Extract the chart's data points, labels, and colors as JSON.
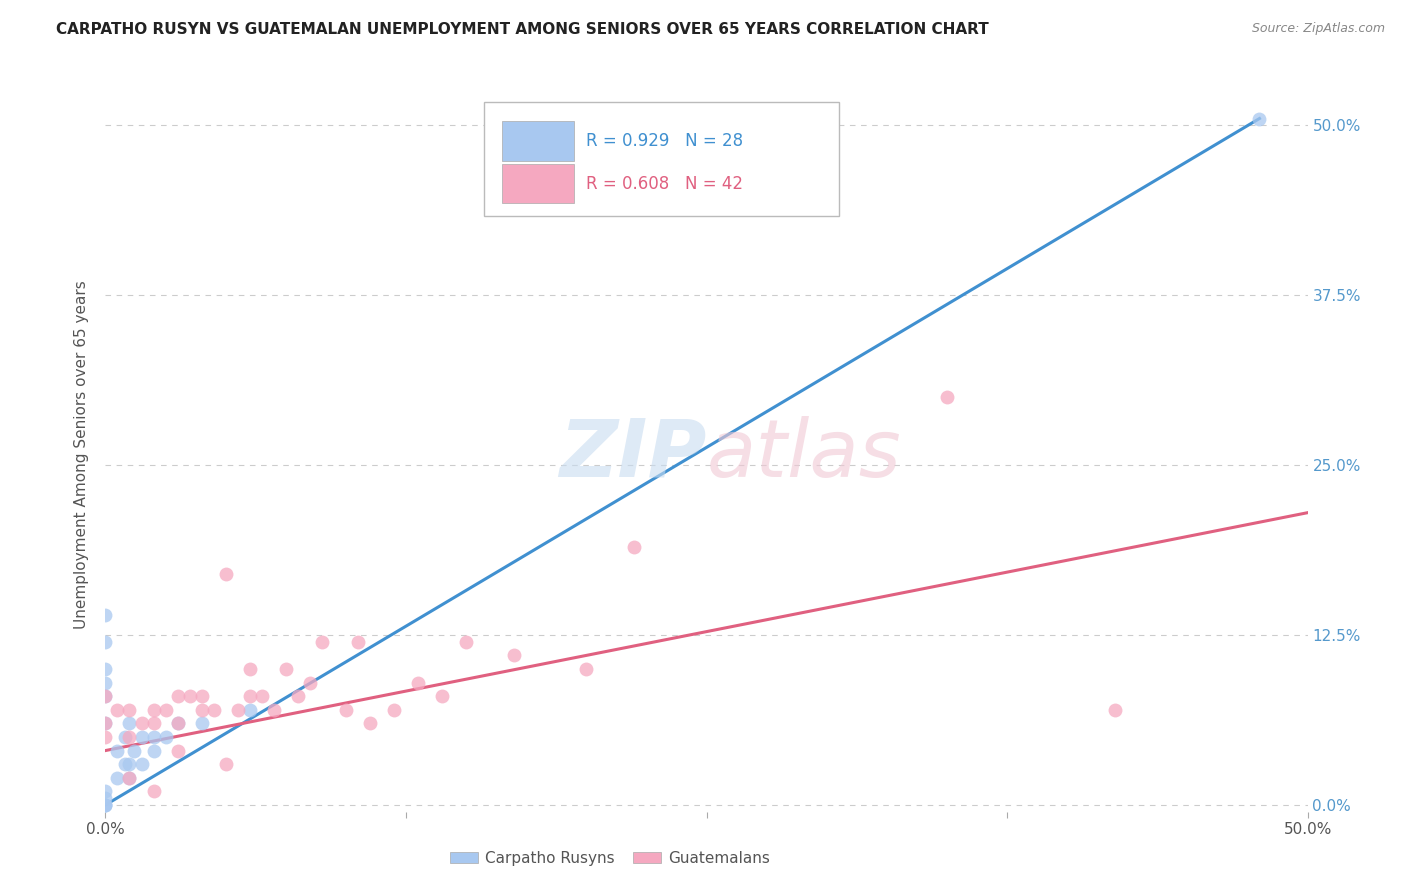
{
  "title": "CARPATHO RUSYN VS GUATEMALAN UNEMPLOYMENT AMONG SENIORS OVER 65 YEARS CORRELATION CHART",
  "source": "Source: ZipAtlas.com",
  "ylabel": "Unemployment Among Seniors over 65 years",
  "xlim": [
    0.0,
    0.5
  ],
  "ylim": [
    -0.005,
    0.52
  ],
  "xticks": [
    0.0,
    0.125,
    0.25,
    0.375,
    0.5
  ],
  "yticks": [
    0.0,
    0.125,
    0.25,
    0.375,
    0.5
  ],
  "ytick_labels_right": [
    "0.0%",
    "12.5%",
    "25.0%",
    "37.5%",
    "50.0%"
  ],
  "xtick_labels_bottom": [
    "0.0%",
    "",
    "",
    "",
    "50.0%"
  ],
  "background_color": "#ffffff",
  "carpatho_color": "#A8C8F0",
  "guatemalan_color": "#F5A8C0",
  "line_color_blue": "#4090D0",
  "line_color_pink": "#E06080",
  "R_carpatho": 0.929,
  "N_carpatho": 28,
  "R_guatemalan": 0.608,
  "N_guatemalan": 42,
  "carpatho_scatter_x": [
    0.0,
    0.0,
    0.0,
    0.0,
    0.0,
    0.0,
    0.0,
    0.0,
    0.0,
    0.0,
    0.0,
    0.005,
    0.005,
    0.008,
    0.008,
    0.01,
    0.01,
    0.01,
    0.012,
    0.015,
    0.015,
    0.02,
    0.02,
    0.025,
    0.03,
    0.04,
    0.06,
    0.48
  ],
  "carpatho_scatter_y": [
    0.0,
    0.0,
    0.0,
    0.005,
    0.01,
    0.06,
    0.08,
    0.09,
    0.1,
    0.12,
    0.14,
    0.02,
    0.04,
    0.03,
    0.05,
    0.02,
    0.03,
    0.06,
    0.04,
    0.03,
    0.05,
    0.04,
    0.05,
    0.05,
    0.06,
    0.06,
    0.07,
    0.505
  ],
  "guatemalan_scatter_x": [
    0.0,
    0.0,
    0.0,
    0.005,
    0.01,
    0.01,
    0.01,
    0.015,
    0.02,
    0.02,
    0.02,
    0.025,
    0.03,
    0.03,
    0.03,
    0.035,
    0.04,
    0.04,
    0.045,
    0.05,
    0.05,
    0.055,
    0.06,
    0.06,
    0.065,
    0.07,
    0.075,
    0.08,
    0.085,
    0.09,
    0.1,
    0.105,
    0.11,
    0.12,
    0.13,
    0.14,
    0.15,
    0.17,
    0.2,
    0.22,
    0.35,
    0.42
  ],
  "guatemalan_scatter_y": [
    0.05,
    0.06,
    0.08,
    0.07,
    0.02,
    0.05,
    0.07,
    0.06,
    0.01,
    0.06,
    0.07,
    0.07,
    0.04,
    0.06,
    0.08,
    0.08,
    0.07,
    0.08,
    0.07,
    0.03,
    0.17,
    0.07,
    0.08,
    0.1,
    0.08,
    0.07,
    0.1,
    0.08,
    0.09,
    0.12,
    0.07,
    0.12,
    0.06,
    0.07,
    0.09,
    0.08,
    0.12,
    0.11,
    0.1,
    0.19,
    0.3,
    0.07
  ],
  "blue_line_x": [
    0.0,
    0.48
  ],
  "blue_line_y": [
    0.0,
    0.505
  ],
  "pink_line_x": [
    0.0,
    0.5
  ],
  "pink_line_y": [
    0.04,
    0.215
  ]
}
